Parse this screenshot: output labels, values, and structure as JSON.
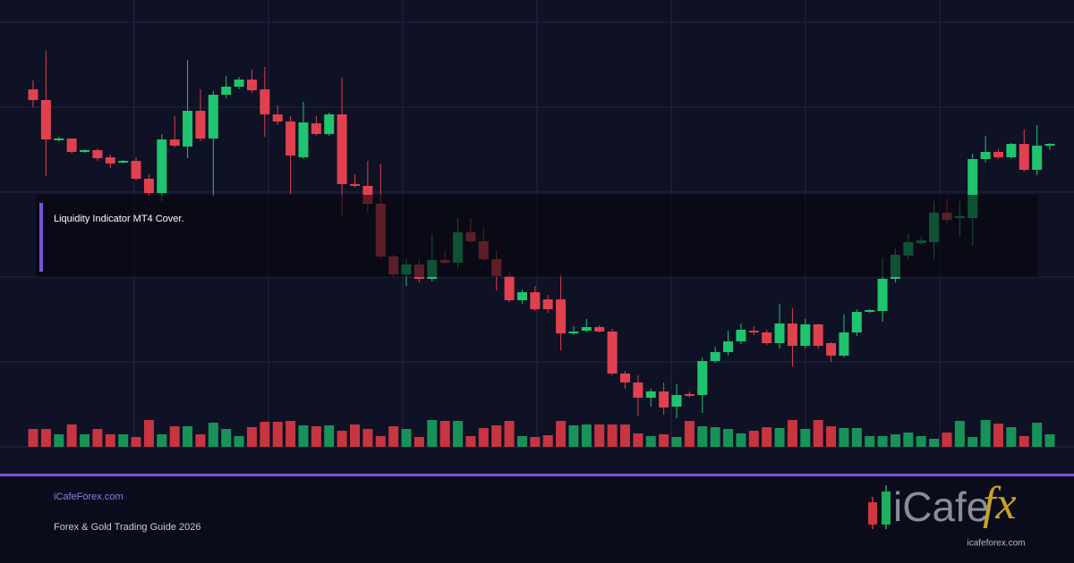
{
  "chart_data": {
    "type": "candlestick",
    "open": [
      400,
      388,
      343,
      345,
      330,
      332,
      324,
      318,
      320,
      300,
      284,
      344,
      336,
      376,
      345,
      394,
      403,
      411,
      400,
      372,
      364,
      324,
      362,
      350,
      372,
      294,
      292,
      272,
      213,
      193,
      204,
      188,
      209,
      206,
      240,
      230,
      210,
      191,
      164,
      173,
      165,
      165,
      127,
      130,
      134,
      129,
      82,
      72,
      55,
      62,
      45,
      59,
      58,
      96,
      106,
      118,
      130,
      128,
      116,
      138,
      113,
      137,
      116,
      102,
      128,
      151,
      152,
      188,
      214,
      228,
      229,
      262,
      256,
      256,
      322,
      330,
      324,
      339,
      310,
      337
    ],
    "high": [
      410,
      443,
      347,
      345,
      333,
      334,
      327,
      321,
      324,
      305,
      350,
      370,
      433,
      400,
      398,
      415,
      414,
      422,
      425,
      382,
      370,
      386,
      370,
      374,
      413,
      305,
      320,
      317,
      215,
      210,
      210,
      238,
      220,
      256,
      256,
      245,
      220,
      195,
      176,
      180,
      170,
      194,
      135,
      143,
      136,
      132,
      85,
      80,
      65,
      72,
      70,
      62,
      100,
      112,
      130,
      138,
      135,
      131,
      160,
      155,
      143,
      138,
      117,
      148,
      154,
      154,
      212,
      222,
      238,
      235,
      275,
      278,
      275,
      328,
      348,
      333,
      340,
      355,
      360,
      340
    ],
    "low": [
      380,
      303,
      342,
      328,
      329,
      320,
      312,
      317,
      298,
      280,
      275,
      335,
      323,
      342,
      280,
      390,
      400,
      396,
      347,
      360,
      283,
      322,
      348,
      348,
      257,
      290,
      262,
      210,
      190,
      180,
      184,
      185,
      204,
      200,
      228,
      208,
      175,
      162,
      160,
      152,
      150,
      108,
      125,
      128,
      128,
      80,
      65,
      35,
      45,
      36,
      32,
      55,
      38,
      94,
      102,
      115,
      125,
      114,
      110,
      90,
      110,
      110,
      95,
      100,
      124,
      150,
      140,
      184,
      210,
      226,
      210,
      250,
      235,
      225,
      318,
      322,
      322,
      308,
      304,
      332
    ],
    "close": [
      388,
      344,
      345,
      330,
      332,
      323,
      317,
      320,
      300,
      284,
      344,
      337,
      376,
      345,
      394,
      403,
      411,
      399,
      372,
      364,
      326,
      363,
      350,
      372,
      294,
      292,
      272,
      213,
      193,
      204,
      188,
      209,
      206,
      240,
      230,
      210,
      191,
      164,
      173,
      154,
      154,
      127,
      129,
      134,
      129,
      82,
      72,
      55,
      62,
      44,
      58,
      57,
      96,
      106,
      118,
      131,
      128,
      116,
      138,
      113,
      137,
      113,
      102,
      128,
      151,
      153,
      188,
      215,
      229,
      231,
      262,
      254,
      258,
      322,
      330,
      324,
      339,
      310,
      337,
      339
    ],
    "volume": [
      20,
      20,
      14,
      25,
      14,
      20,
      14,
      14,
      11,
      30,
      14,
      23,
      23,
      14,
      27,
      20,
      12,
      22,
      28,
      28,
      29,
      24,
      23,
      24,
      18,
      25,
      20,
      12,
      23,
      20,
      11,
      30,
      29,
      29,
      12,
      21,
      24,
      29,
      12,
      11,
      13,
      29,
      24,
      25,
      25,
      25,
      25,
      15,
      12,
      14,
      11,
      29,
      23,
      22,
      20,
      15,
      18,
      22,
      21,
      30,
      20,
      30,
      23,
      21,
      21,
      12,
      12,
      14,
      16,
      12,
      9,
      16,
      29,
      11,
      30,
      26,
      22,
      12,
      27,
      14
    ],
    "ylim": [
      0,
      480
    ],
    "up_color": "#1fc46e",
    "down_color": "#e0414f",
    "volume_up_color": "#17935a",
    "volume_down_color": "#c73540"
  },
  "overlay": {
    "caption": "Liquidity Indicator MT4 Cover."
  },
  "footer": {
    "site": "iCafeForex.com",
    "subtitle": "Forex & Gold Trading Guide 2026"
  },
  "logo": {
    "wordmark": "iCafe",
    "accent": "fx",
    "url": "icafeforex.com"
  }
}
